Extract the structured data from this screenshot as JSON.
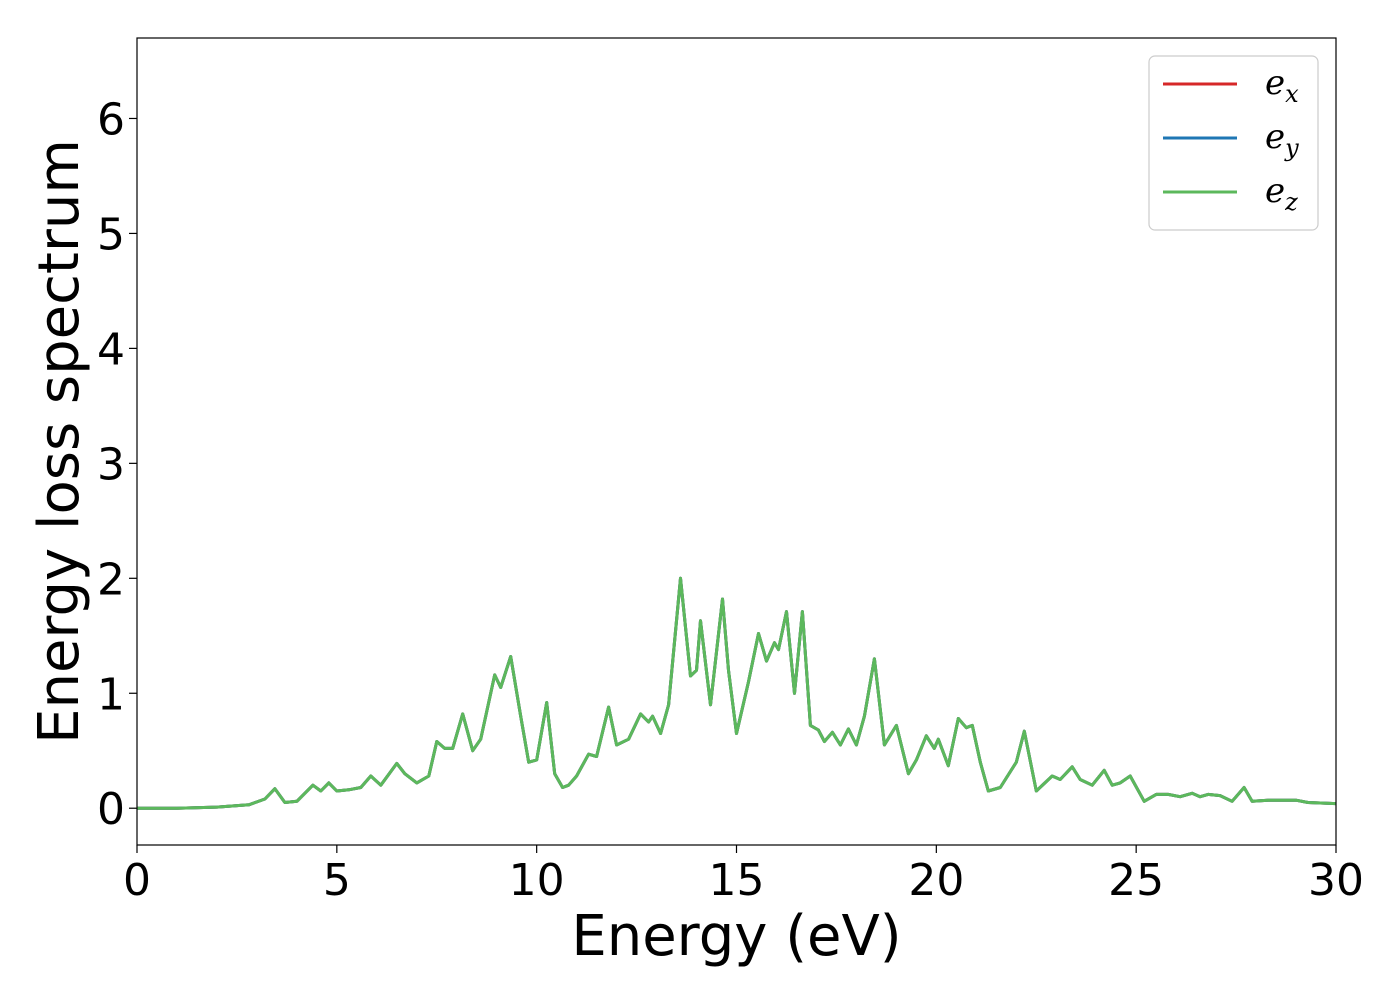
{
  "chart_data": {
    "type": "line",
    "title": "",
    "xlabel": "Energy (eV)",
    "ylabel": "Energy loss spectrum",
    "xlim": [
      0,
      30
    ],
    "ylim": [
      -0.32,
      6.7
    ],
    "xticks": [
      0,
      5,
      10,
      15,
      20,
      25,
      30
    ],
    "yticks": [
      0,
      1,
      2,
      3,
      4,
      5,
      6
    ],
    "grid": false,
    "legend_position": "top-right",
    "series": [
      {
        "name": "x",
        "color": "#d62728",
        "x": [
          0,
          1,
          2,
          2.8,
          3.2,
          3.45,
          3.7,
          4.0,
          4.4,
          4.6,
          4.8,
          5.0,
          5.3,
          5.6,
          5.85,
          6.1,
          6.5,
          6.7,
          7.0,
          7.3,
          7.5,
          7.7,
          7.9,
          8.15,
          8.4,
          8.6,
          8.95,
          9.1,
          9.35,
          9.6,
          9.8,
          10.0,
          10.25,
          10.45,
          10.65,
          10.8,
          11.0,
          11.3,
          11.5,
          11.8,
          12.0,
          12.3,
          12.6,
          12.8,
          12.9,
          13.1,
          13.3,
          13.6,
          13.85,
          14.0,
          14.1,
          14.35,
          14.65,
          14.8,
          15.0,
          15.3,
          15.55,
          15.75,
          15.95,
          16.05,
          16.25,
          16.45,
          16.65,
          16.85,
          17.05,
          17.2,
          17.4,
          17.6,
          17.8,
          18.0,
          18.2,
          18.45,
          18.7,
          19.0,
          19.3,
          19.5,
          19.75,
          19.95,
          20.05,
          20.3,
          20.55,
          20.75,
          20.9,
          21.1,
          21.3,
          21.6,
          22.0,
          22.2,
          22.5,
          22.9,
          23.1,
          23.4,
          23.6,
          23.9,
          24.2,
          24.4,
          24.6,
          24.85,
          25.2,
          25.5,
          25.8,
          26.1,
          26.4,
          26.6,
          26.8,
          27.1,
          27.4,
          27.7,
          27.9,
          28.3,
          28.7,
          29.0,
          29.3,
          30.0
        ],
        "y": [
          0,
          0,
          0.01,
          0.03,
          0.08,
          0.17,
          0.05,
          0.06,
          0.2,
          0.15,
          0.22,
          0.15,
          0.16,
          0.18,
          0.28,
          0.2,
          0.39,
          0.3,
          0.22,
          0.28,
          0.58,
          0.52,
          0.52,
          0.82,
          0.5,
          0.6,
          1.16,
          1.05,
          1.32,
          0.8,
          0.4,
          0.42,
          0.92,
          0.3,
          0.18,
          0.2,
          0.28,
          0.47,
          0.45,
          0.88,
          0.55,
          0.6,
          0.82,
          0.75,
          0.8,
          0.65,
          0.9,
          2.0,
          1.15,
          1.2,
          1.63,
          0.9,
          1.82,
          1.2,
          0.65,
          1.1,
          1.52,
          1.28,
          1.44,
          1.38,
          1.71,
          1.0,
          1.71,
          0.72,
          0.68,
          0.58,
          0.66,
          0.55,
          0.69,
          0.55,
          0.8,
          1.3,
          0.55,
          0.72,
          0.3,
          0.42,
          0.63,
          0.52,
          0.6,
          0.37,
          0.78,
          0.7,
          0.72,
          0.4,
          0.15,
          0.18,
          0.4,
          0.67,
          0.15,
          0.28,
          0.25,
          0.36,
          0.25,
          0.2,
          0.33,
          0.2,
          0.22,
          0.28,
          0.06,
          0.12,
          0.12,
          0.1,
          0.13,
          0.1,
          0.12,
          0.11,
          0.06,
          0.18,
          0.06,
          0.07,
          0.07,
          0.07,
          0.05,
          0.04
        ]
      },
      {
        "name": "y",
        "color": "#1f77b4",
        "x": [
          0,
          1,
          2,
          2.8,
          3.2,
          3.45,
          3.7,
          4.0,
          4.4,
          4.6,
          4.8,
          5.0,
          5.3,
          5.6,
          5.85,
          6.1,
          6.5,
          6.7,
          7.0,
          7.3,
          7.5,
          7.7,
          7.9,
          8.15,
          8.4,
          8.6,
          8.95,
          9.1,
          9.35,
          9.6,
          9.8,
          10.0,
          10.25,
          10.45,
          10.65,
          10.8,
          11.0,
          11.3,
          11.5,
          11.8,
          12.0,
          12.3,
          12.6,
          12.8,
          12.9,
          13.1,
          13.3,
          13.6,
          13.85,
          14.0,
          14.1,
          14.35,
          14.65,
          14.8,
          15.0,
          15.3,
          15.55,
          15.75,
          15.95,
          16.05,
          16.25,
          16.45,
          16.65,
          16.85,
          17.05,
          17.2,
          17.4,
          17.6,
          17.8,
          18.0,
          18.2,
          18.45,
          18.7,
          19.0,
          19.3,
          19.5,
          19.75,
          19.95,
          20.05,
          20.3,
          20.55,
          20.75,
          20.9,
          21.1,
          21.3,
          21.6,
          22.0,
          22.2,
          22.5,
          22.9,
          23.1,
          23.4,
          23.6,
          23.9,
          24.2,
          24.4,
          24.6,
          24.85,
          25.2,
          25.5,
          25.8,
          26.1,
          26.4,
          26.6,
          26.8,
          27.1,
          27.4,
          27.7,
          27.9,
          28.3,
          28.7,
          29.0,
          29.3,
          30.0
        ],
        "y": [
          0,
          0,
          0.01,
          0.03,
          0.08,
          0.17,
          0.05,
          0.06,
          0.2,
          0.15,
          0.22,
          0.15,
          0.16,
          0.18,
          0.28,
          0.2,
          0.39,
          0.3,
          0.22,
          0.28,
          0.58,
          0.52,
          0.52,
          0.82,
          0.5,
          0.6,
          1.16,
          1.05,
          1.32,
          0.8,
          0.4,
          0.42,
          0.92,
          0.3,
          0.18,
          0.2,
          0.28,
          0.47,
          0.45,
          0.88,
          0.55,
          0.6,
          0.82,
          0.75,
          0.8,
          0.65,
          0.9,
          2.0,
          1.15,
          1.2,
          1.63,
          0.9,
          1.82,
          1.2,
          0.65,
          1.1,
          1.52,
          1.28,
          1.44,
          1.38,
          1.71,
          1.0,
          1.71,
          0.72,
          0.68,
          0.58,
          0.66,
          0.55,
          0.69,
          0.55,
          0.8,
          1.3,
          0.55,
          0.72,
          0.3,
          0.42,
          0.63,
          0.52,
          0.6,
          0.37,
          0.78,
          0.7,
          0.72,
          0.4,
          0.15,
          0.18,
          0.4,
          0.67,
          0.15,
          0.28,
          0.25,
          0.36,
          0.25,
          0.2,
          0.33,
          0.2,
          0.22,
          0.28,
          0.06,
          0.12,
          0.12,
          0.1,
          0.13,
          0.1,
          0.12,
          0.11,
          0.06,
          0.18,
          0.06,
          0.07,
          0.07,
          0.07,
          0.05,
          0.04
        ]
      },
      {
        "name": "z",
        "color": "#5cb85c",
        "x": [
          0,
          1,
          2,
          2.8,
          3.2,
          3.45,
          3.7,
          4.0,
          4.4,
          4.6,
          4.8,
          5.0,
          5.3,
          5.6,
          5.85,
          6.1,
          6.5,
          6.7,
          7.0,
          7.3,
          7.5,
          7.7,
          7.9,
          8.15,
          8.4,
          8.6,
          8.95,
          9.1,
          9.35,
          9.6,
          9.8,
          10.0,
          10.25,
          10.45,
          10.65,
          10.8,
          11.0,
          11.3,
          11.5,
          11.8,
          12.0,
          12.3,
          12.6,
          12.8,
          12.9,
          13.1,
          13.3,
          13.6,
          13.85,
          14.0,
          14.1,
          14.35,
          14.65,
          14.8,
          15.0,
          15.3,
          15.55,
          15.75,
          15.95,
          16.05,
          16.25,
          16.45,
          16.65,
          16.85,
          17.05,
          17.2,
          17.4,
          17.6,
          17.8,
          18.0,
          18.2,
          18.45,
          18.7,
          19.0,
          19.3,
          19.5,
          19.75,
          19.95,
          20.05,
          20.3,
          20.55,
          20.75,
          20.9,
          21.1,
          21.3,
          21.6,
          22.0,
          22.2,
          22.5,
          22.9,
          23.1,
          23.4,
          23.6,
          23.9,
          24.2,
          24.4,
          24.6,
          24.85,
          25.2,
          25.5,
          25.8,
          26.1,
          26.4,
          26.6,
          26.8,
          27.1,
          27.4,
          27.7,
          27.9,
          28.3,
          28.7,
          29.0,
          29.3,
          30.0
        ],
        "y": [
          0,
          0,
          0.01,
          0.03,
          0.08,
          0.17,
          0.05,
          0.06,
          0.2,
          0.15,
          0.22,
          0.15,
          0.16,
          0.18,
          0.28,
          0.2,
          0.39,
          0.3,
          0.22,
          0.28,
          0.58,
          0.52,
          0.52,
          0.82,
          0.5,
          0.6,
          1.16,
          1.05,
          1.32,
          0.8,
          0.4,
          0.42,
          0.92,
          0.3,
          0.18,
          0.2,
          0.28,
          0.47,
          0.45,
          0.88,
          0.55,
          0.6,
          0.82,
          0.75,
          0.8,
          0.65,
          0.9,
          2.0,
          1.15,
          1.2,
          1.63,
          0.9,
          1.82,
          1.2,
          0.65,
          1.1,
          1.52,
          1.28,
          1.44,
          1.38,
          1.71,
          1.0,
          1.71,
          0.72,
          0.68,
          0.58,
          0.66,
          0.55,
          0.69,
          0.55,
          0.8,
          1.3,
          0.55,
          0.72,
          0.3,
          0.42,
          0.63,
          0.52,
          0.6,
          0.37,
          0.78,
          0.7,
          0.72,
          0.4,
          0.15,
          0.18,
          0.4,
          0.67,
          0.15,
          0.28,
          0.25,
          0.36,
          0.25,
          0.2,
          0.33,
          0.2,
          0.22,
          0.28,
          0.06,
          0.12,
          0.12,
          0.1,
          0.13,
          0.1,
          0.12,
          0.11,
          0.06,
          0.18,
          0.06,
          0.07,
          0.07,
          0.07,
          0.05,
          0.04
        ]
      }
    ]
  },
  "legend": {
    "entries": [
      {
        "base": "e",
        "sub": "x",
        "color": "#d62728"
      },
      {
        "base": "e",
        "sub": "y",
        "color": "#1f77b4"
      },
      {
        "base": "e",
        "sub": "z",
        "color": "#5cb85c"
      }
    ]
  }
}
